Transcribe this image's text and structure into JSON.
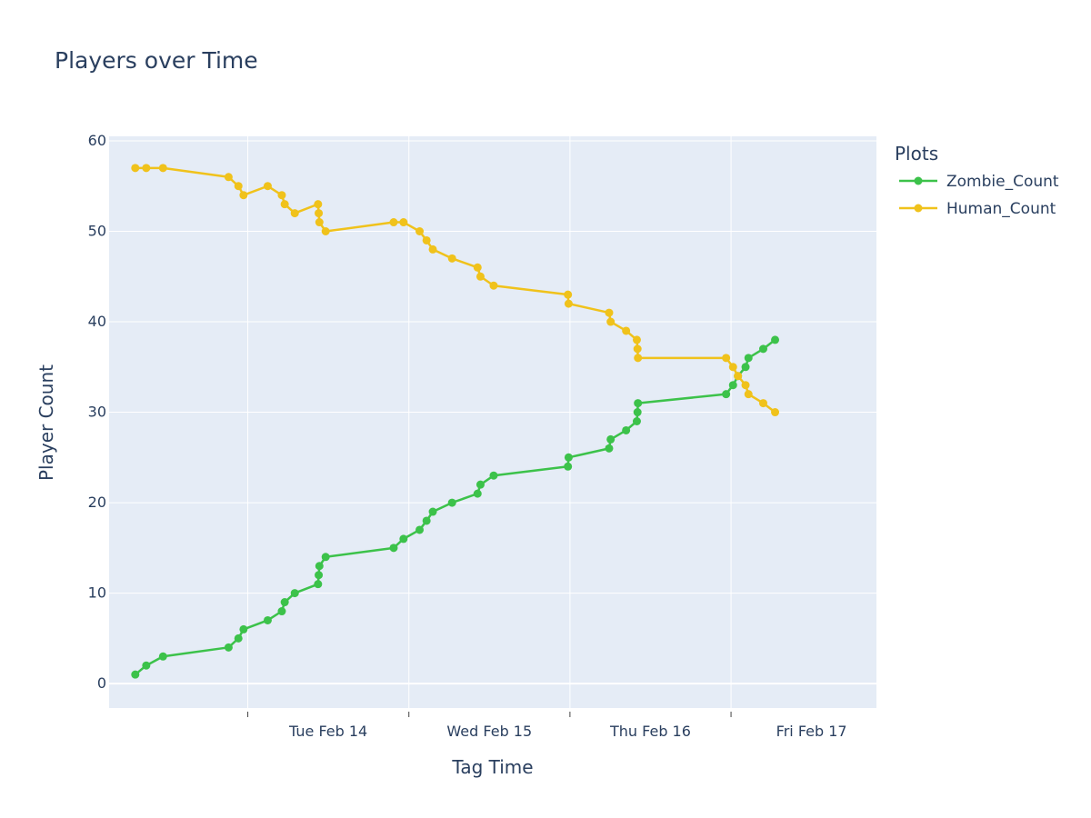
{
  "chart_data": {
    "type": "line",
    "title": "Players over Time",
    "xlabel": "Tag Time",
    "ylabel": "Player Count",
    "xlim": [
      "2023-02-13 03:20",
      "2023-02-17 21:40"
    ],
    "ylim": [
      -2.7,
      60.5
    ],
    "x_ticks": [
      {
        "at": "2023-02-14 00:00",
        "label": "Tue Feb 14"
      },
      {
        "at": "2023-02-15 00:00",
        "label": "Wed Feb 15"
      },
      {
        "at": "2023-02-16 00:00",
        "label": "Thu Feb 16"
      },
      {
        "at": "2023-02-17 00:00",
        "label": "Fri Feb 17"
      }
    ],
    "x_gridlines": [
      "2023-02-14 00:00",
      "2023-02-15 00:00",
      "2023-02-16 00:00",
      "2023-02-17 00:00"
    ],
    "y_ticks": [
      0,
      10,
      20,
      30,
      40,
      50,
      60
    ],
    "grid": true,
    "legend_title": "Plots",
    "legend_position": "right",
    "series": [
      {
        "name": "Zombie_Count",
        "color": "#3cc24a",
        "points": [
          [
            "2023-02-13 07:14",
            1
          ],
          [
            "2023-02-13 08:52",
            2
          ],
          [
            "2023-02-13 11:22",
            3
          ],
          [
            "2023-02-13 21:08",
            4
          ],
          [
            "2023-02-13 22:36",
            5
          ],
          [
            "2023-02-13 23:22",
            6
          ],
          [
            "2023-02-14 02:58",
            7
          ],
          [
            "2023-02-14 05:04",
            8
          ],
          [
            "2023-02-14 05:30",
            9
          ],
          [
            "2023-02-14 07:00",
            10
          ],
          [
            "2023-02-14 10:28",
            11
          ],
          [
            "2023-02-14 10:34",
            12
          ],
          [
            "2023-02-14 10:40",
            13
          ],
          [
            "2023-02-14 11:36",
            14
          ],
          [
            "2023-02-14 21:44",
            15
          ],
          [
            "2023-02-14 23:12",
            16
          ],
          [
            "2023-02-15 01:36",
            17
          ],
          [
            "2023-02-15 02:38",
            18
          ],
          [
            "2023-02-15 03:34",
            19
          ],
          [
            "2023-02-15 06:26",
            20
          ],
          [
            "2023-02-15 10:14",
            21
          ],
          [
            "2023-02-15 10:40",
            22
          ],
          [
            "2023-02-15 12:38",
            23
          ],
          [
            "2023-02-15 23:42",
            24
          ],
          [
            "2023-02-15 23:48",
            25
          ],
          [
            "2023-02-16 05:50",
            26
          ],
          [
            "2023-02-16 06:04",
            27
          ],
          [
            "2023-02-16 08:22",
            28
          ],
          [
            "2023-02-16 09:58",
            29
          ],
          [
            "2023-02-16 10:04",
            30
          ],
          [
            "2023-02-16 10:08",
            31
          ],
          [
            "2023-02-16 23:16",
            32
          ],
          [
            "2023-02-17 00:18",
            33
          ],
          [
            "2023-02-17 01:02",
            34
          ],
          [
            "2023-02-17 02:10",
            35
          ],
          [
            "2023-02-17 02:36",
            36
          ],
          [
            "2023-02-17 04:48",
            37
          ],
          [
            "2023-02-17 06:34",
            38
          ]
        ]
      },
      {
        "name": "Human_Count",
        "color": "#f0c21b",
        "points": [
          [
            "2023-02-13 07:14",
            57
          ],
          [
            "2023-02-13 08:52",
            57
          ],
          [
            "2023-02-13 11:22",
            57
          ],
          [
            "2023-02-13 21:08",
            56
          ],
          [
            "2023-02-13 22:36",
            55
          ],
          [
            "2023-02-13 23:22",
            54
          ],
          [
            "2023-02-14 02:58",
            55
          ],
          [
            "2023-02-14 05:04",
            54
          ],
          [
            "2023-02-14 05:30",
            53
          ],
          [
            "2023-02-14 07:00",
            52
          ],
          [
            "2023-02-14 10:28",
            53
          ],
          [
            "2023-02-14 10:34",
            52
          ],
          [
            "2023-02-14 10:40",
            51
          ],
          [
            "2023-02-14 11:36",
            50
          ],
          [
            "2023-02-14 21:44",
            51
          ],
          [
            "2023-02-14 23:12",
            51
          ],
          [
            "2023-02-15 01:36",
            50
          ],
          [
            "2023-02-15 02:38",
            49
          ],
          [
            "2023-02-15 03:34",
            48
          ],
          [
            "2023-02-15 06:26",
            47
          ],
          [
            "2023-02-15 10:14",
            46
          ],
          [
            "2023-02-15 10:40",
            45
          ],
          [
            "2023-02-15 12:38",
            44
          ],
          [
            "2023-02-15 23:42",
            43
          ],
          [
            "2023-02-15 23:48",
            42
          ],
          [
            "2023-02-16 05:50",
            41
          ],
          [
            "2023-02-16 06:04",
            40
          ],
          [
            "2023-02-16 08:22",
            39
          ],
          [
            "2023-02-16 09:58",
            38
          ],
          [
            "2023-02-16 10:04",
            37
          ],
          [
            "2023-02-16 10:08",
            36
          ],
          [
            "2023-02-16 23:16",
            36
          ],
          [
            "2023-02-17 00:18",
            35
          ],
          [
            "2023-02-17 01:02",
            34
          ],
          [
            "2023-02-17 02:10",
            33
          ],
          [
            "2023-02-17 02:36",
            32
          ],
          [
            "2023-02-17 04:48",
            31
          ],
          [
            "2023-02-17 06:34",
            30
          ]
        ]
      }
    ]
  }
}
